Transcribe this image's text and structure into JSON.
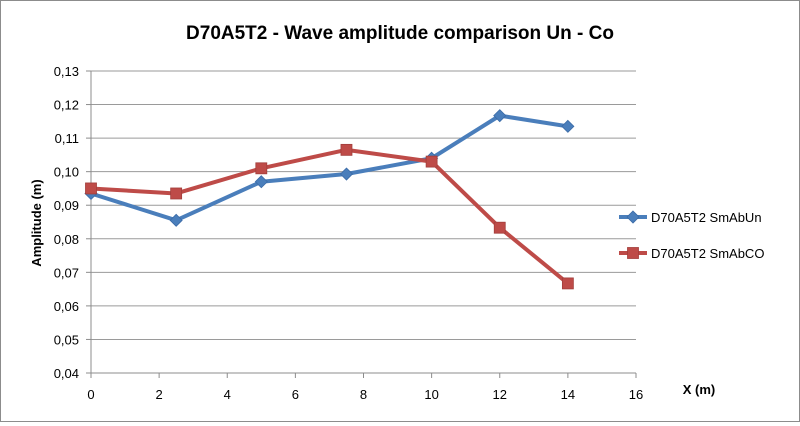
{
  "chart_data": {
    "type": "line",
    "title": "D70A5T2 - Wave amplitude comparison Un - Co",
    "xlabel": "X (m)",
    "ylabel": "Amplitude (m)",
    "xlim": [
      0,
      16
    ],
    "ylim": [
      0.04,
      0.13
    ],
    "x_ticks": [
      "0",
      "2",
      "4",
      "6",
      "8",
      "10",
      "12",
      "14",
      "16"
    ],
    "y_ticks": [
      "0,04",
      "0,05",
      "0,06",
      "0,07",
      "0,08",
      "0,09",
      "0,10",
      "0,11",
      "0,12",
      "0,13"
    ],
    "grid": "horizontal",
    "legend_position": "right",
    "series": [
      {
        "name": "D70A5T2 SmAbUn",
        "color": "#4a7ebb",
        "marker": "diamond",
        "x": [
          0,
          2.5,
          5,
          7.5,
          10,
          12,
          14
        ],
        "y": [
          0.0935,
          0.0855,
          0.097,
          0.0993,
          0.104,
          0.1167,
          0.1135
        ]
      },
      {
        "name": "D70A5T2 SmAbCO",
        "color": "#be4b48",
        "marker": "square",
        "x": [
          0,
          2.5,
          5,
          7.5,
          10,
          12,
          14
        ],
        "y": [
          0.095,
          0.0935,
          0.101,
          0.1065,
          0.103,
          0.0833,
          0.0667
        ]
      }
    ]
  }
}
